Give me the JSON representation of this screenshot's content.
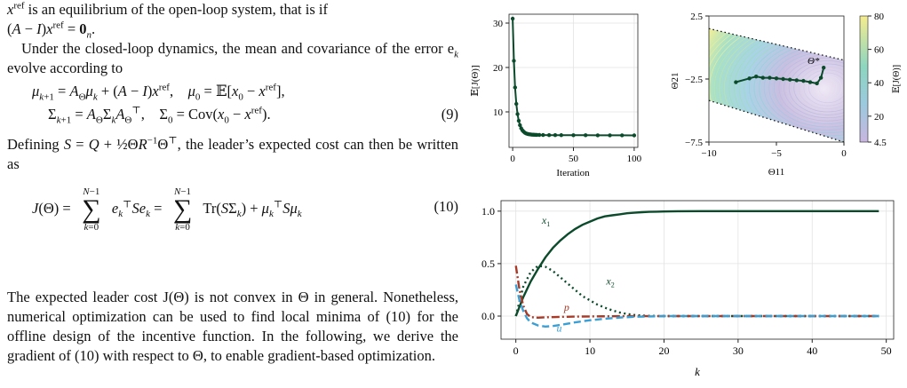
{
  "text": {
    "line1_tail": "is an equilibrium of the open-loop system, that is if",
    "para2": "Under the closed-loop dynamics, the mean and covariance of the error e",
    "para2_b": "evolve according to",
    "eq9_num": "(9)",
    "defining_a": "Defining",
    "defining_b": ", the leader’s expected cost can then be written as",
    "eq10_num": "(10)",
    "para_last": "The expected leader cost J(Θ) is not convex in Θ in general. Nonetheless, numerical optimization can be used to find local minima of (10) for the offline design of the incentive function. In the following, we derive the gradient of (10) with respect to Θ, to enable gradient-based optimization."
  },
  "chart_data": [
    {
      "type": "line",
      "ylabel": "𝔼[J(Θ)]",
      "xlabel": "Iteration",
      "xlim": [
        -3,
        103
      ],
      "ylim": [
        2,
        32
      ],
      "xticks": [
        0,
        50,
        100
      ],
      "yticks": [
        10,
        20,
        30
      ],
      "grid": true,
      "series": [
        {
          "color": "#0b4a2b",
          "x": [
            0,
            1,
            2,
            3,
            4,
            5,
            6,
            7,
            8,
            9,
            10,
            11,
            12,
            13,
            14,
            15,
            16,
            17,
            18,
            19,
            20,
            22,
            25,
            30,
            35,
            40,
            50,
            60,
            70,
            80,
            90,
            100
          ],
          "y": [
            31.0,
            21.5,
            15.5,
            11.8,
            9.5,
            8.0,
            7.0,
            6.3,
            5.85,
            5.55,
            5.3,
            5.15,
            5.05,
            4.98,
            4.93,
            4.9,
            4.87,
            4.85,
            4.83,
            4.82,
            4.81,
            4.8,
            4.78,
            4.77,
            4.76,
            4.75,
            4.74,
            4.73,
            4.72,
            4.72,
            4.71,
            4.7
          ]
        }
      ]
    },
    {
      "type": "contour",
      "xlabel": "Θ11",
      "ylabel": "Θ21",
      "xlim": [
        -10,
        0
      ],
      "ylim": [
        -7.5,
        2.5
      ],
      "xticks": [
        -10,
        -5,
        0
      ],
      "yticks": [
        2.5,
        -2.5,
        -7.5
      ],
      "colorbar": {
        "label": "𝔼[J(Θ)]",
        "ticks": [
          80,
          60,
          40,
          20,
          4.5
        ],
        "range": [
          4.5,
          80
        ]
      },
      "annotation": "Θ*",
      "path": {
        "color": "#0b4a2b",
        "x": [
          -8.0,
          -7.0,
          -6.5,
          -6.0,
          -5.5,
          -5.0,
          -4.5,
          -4.0,
          -3.5,
          -3.0,
          -2.5,
          -2.0,
          -1.7,
          -1.5
        ],
        "y": [
          -2.75,
          -2.45,
          -2.3,
          -2.4,
          -2.4,
          -2.45,
          -2.5,
          -2.55,
          -2.6,
          -2.65,
          -2.75,
          -2.85,
          -2.4,
          -1.6
        ]
      }
    },
    {
      "type": "line",
      "xlabel": "k",
      "xlim": [
        -2,
        51
      ],
      "ylim": [
        -0.22,
        1.1
      ],
      "xticks": [
        0,
        10,
        20,
        30,
        40,
        50
      ],
      "yticks": [
        0.0,
        0.5,
        1.0
      ],
      "grid": true,
      "series": [
        {
          "name": "x1",
          "color": "#0b4a2b",
          "style": "solid",
          "x": [
            0,
            1,
            2,
            3,
            4,
            5,
            6,
            7,
            8,
            9,
            10,
            11,
            12,
            13,
            14,
            15,
            16,
            17,
            18,
            19,
            20,
            22,
            25,
            30,
            35,
            40,
            45,
            49
          ],
          "y": [
            0,
            0.18,
            0.33,
            0.45,
            0.56,
            0.65,
            0.72,
            0.78,
            0.83,
            0.87,
            0.9,
            0.93,
            0.95,
            0.96,
            0.97,
            0.98,
            0.985,
            0.99,
            0.993,
            0.995,
            0.997,
            0.999,
            1,
            1,
            1,
            1,
            1,
            1
          ]
        },
        {
          "name": "x2",
          "color": "#0b4a2b",
          "style": "dotted",
          "x": [
            0,
            1,
            2,
            3,
            4,
            5,
            6,
            7,
            8,
            9,
            10,
            11,
            12,
            13,
            14,
            15,
            16,
            17,
            18,
            20,
            22,
            25,
            30,
            35,
            40,
            45,
            49
          ],
          "y": [
            0,
            0.28,
            0.42,
            0.48,
            0.47,
            0.43,
            0.37,
            0.31,
            0.25,
            0.19,
            0.15,
            0.11,
            0.08,
            0.055,
            0.035,
            0.02,
            0.01,
            0.005,
            0.002,
            0,
            0,
            0,
            0,
            0,
            0,
            0,
            0
          ]
        },
        {
          "name": "p",
          "color": "#a83a28",
          "style": "dashdot",
          "x": [
            0,
            0.5,
            1,
            1.5,
            2,
            3,
            4,
            5,
            6,
            8,
            10,
            14,
            20,
            30,
            40,
            49
          ],
          "y": [
            0.48,
            0.25,
            0.1,
            0.02,
            -0.01,
            -0.015,
            -0.012,
            -0.01,
            -0.008,
            -0.005,
            -0.003,
            -0.001,
            0,
            0,
            0,
            0
          ]
        },
        {
          "name": "u",
          "color": "#3b9fd4",
          "style": "dashed",
          "x": [
            0,
            0.5,
            1,
            1.5,
            2,
            3,
            4,
            5,
            6,
            8,
            10,
            12,
            14,
            16,
            20,
            30,
            40,
            49
          ],
          "y": [
            0.3,
            0.15,
            0.05,
            -0.02,
            -0.06,
            -0.09,
            -0.1,
            -0.095,
            -0.085,
            -0.06,
            -0.04,
            -0.025,
            -0.014,
            -0.007,
            0,
            0,
            0,
            0
          ]
        }
      ]
    }
  ]
}
